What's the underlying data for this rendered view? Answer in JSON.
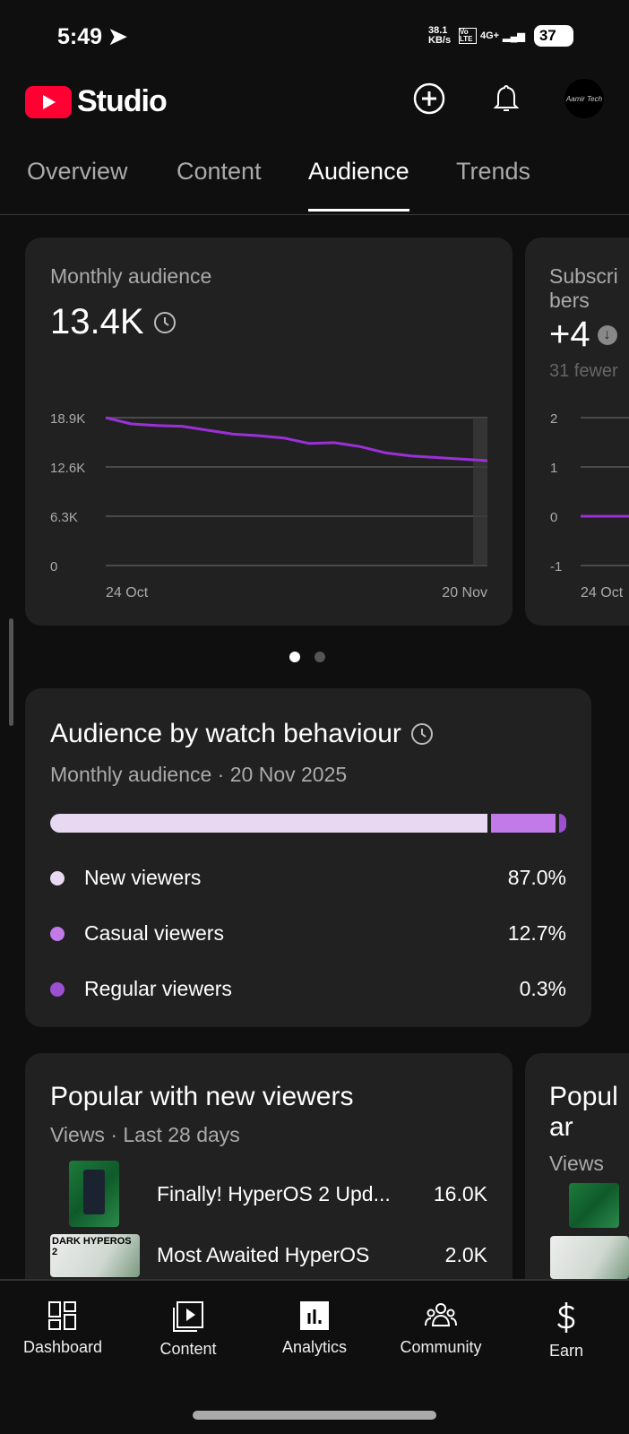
{
  "status_bar": {
    "time": "5:49",
    "net_speed": "38.1 KB/s",
    "volte": "Vo LTE",
    "network": "4G+",
    "battery": "37"
  },
  "header": {
    "app_name": "Studio",
    "avatar_text": "Aamir Tech"
  },
  "tabs": [
    {
      "label": "Overview"
    },
    {
      "label": "Content"
    },
    {
      "label": "Audience",
      "active": true
    },
    {
      "label": "Trends"
    }
  ],
  "monthly_audience": {
    "title": "Monthly audience",
    "value": "13.4K",
    "chart_data": {
      "type": "line",
      "x_labels": [
        "24 Oct",
        "20 Nov"
      ],
      "y_ticks": [
        "18.9K",
        "12.6K",
        "6.3K",
        "0"
      ],
      "ylim": [
        0,
        18900
      ],
      "values": [
        18900,
        18100,
        17900,
        17800,
        17300,
        16800,
        16600,
        16300,
        15600,
        15700,
        15200,
        14400,
        14000,
        13800,
        13600,
        13400
      ]
    }
  },
  "subscribers": {
    "title": "Subscribers",
    "value": "+4",
    "subtitle": "31 fewer",
    "chart_data": {
      "type": "line",
      "x_labels": [
        "24 Oct"
      ],
      "y_ticks": [
        "2",
        "1",
        "0",
        "-1"
      ],
      "ylim": [
        -1,
        2
      ],
      "values": [
        0,
        0,
        0,
        -1
      ]
    }
  },
  "carousel": {
    "pages": 2,
    "active": 1
  },
  "watch_behaviour": {
    "title": "Audience by watch behaviour",
    "subtitle": "Monthly audience",
    "date": "20 Nov 2025",
    "segments": [
      {
        "label": "New viewers",
        "percent": "87.0%",
        "value": 87.0,
        "color": "#e8d8f2"
      },
      {
        "label": "Casual viewers",
        "percent": "12.7%",
        "value": 12.7,
        "color": "#c27ae8"
      },
      {
        "label": "Regular viewers",
        "percent": "0.3%",
        "value": 0.3,
        "color": "#9b4fd1"
      }
    ]
  },
  "popular_new": {
    "title": "Popular with new viewers",
    "subtitle": "Views",
    "period": "Last 28 days",
    "items": [
      {
        "title": "Finally! HyperOS 2 Upd...",
        "views": "16.0K"
      },
      {
        "title": "Most Awaited HyperOS",
        "views": "2.0K",
        "thumb_text": "DARK HYPEROS 2"
      }
    ]
  },
  "popular_second": {
    "title": "Popular",
    "subtitle": "Views"
  },
  "bottom_nav": [
    {
      "label": "Dashboard"
    },
    {
      "label": "Content"
    },
    {
      "label": "Analytics",
      "active": true
    },
    {
      "label": "Community"
    },
    {
      "label": "Earn"
    }
  ]
}
